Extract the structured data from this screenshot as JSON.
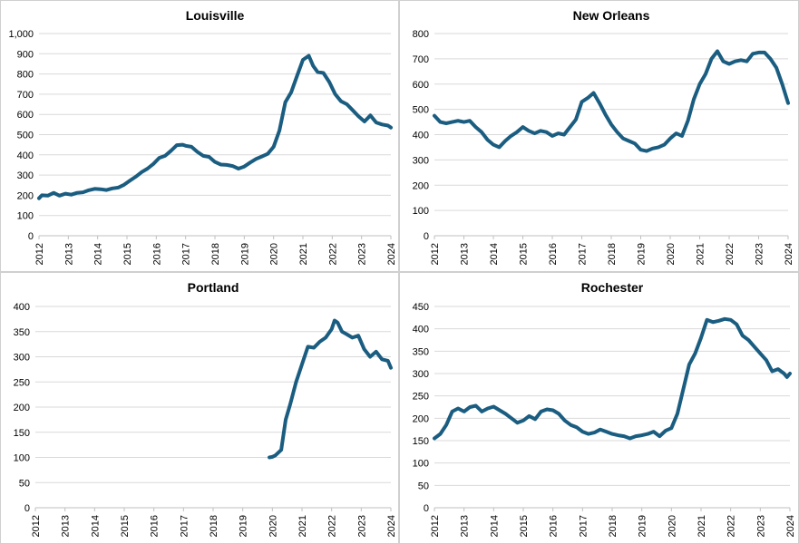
{
  "colors": {
    "series": "#1a5d80",
    "grid": "#d9d9d9"
  },
  "chart_data": [
    {
      "type": "line",
      "title": "Louisville",
      "xlabel": "",
      "ylabel": "",
      "xlim": [
        2012,
        2024
      ],
      "ylim": [
        0,
        1000
      ],
      "y_ticks": [
        0,
        100,
        200,
        300,
        400,
        500,
        600,
        700,
        800,
        900,
        1000
      ],
      "y_tick_labels": [
        "0",
        "100",
        "200",
        "300",
        "400",
        "500",
        "600",
        "700",
        "800",
        "900",
        "1,000"
      ],
      "x_ticks": [
        2012,
        2013,
        2014,
        2015,
        2016,
        2017,
        2018,
        2019,
        2020,
        2021,
        2022,
        2023,
        2024
      ],
      "x_tick_labels": [
        "2012",
        "2013",
        "2014",
        "2015",
        "2016",
        "2017",
        "2018",
        "2019",
        "2020",
        "2021",
        "2022",
        "2023",
        "2024"
      ],
      "grid": true,
      "series": [
        {
          "x": [
            2012.0,
            2012.1,
            2012.3,
            2012.5,
            2012.7,
            2012.9,
            2013.1,
            2013.3,
            2013.5,
            2013.7,
            2013.9,
            2014.1,
            2014.3,
            2014.5,
            2014.7,
            2014.9,
            2015.1,
            2015.3,
            2015.5,
            2015.7,
            2015.9,
            2016.1,
            2016.3,
            2016.5,
            2016.7,
            2016.9,
            2017.0,
            2017.2,
            2017.4,
            2017.6,
            2017.8,
            2018.0,
            2018.2,
            2018.4,
            2018.6,
            2018.8,
            2019.0,
            2019.2,
            2019.4,
            2019.6,
            2019.8,
            2020.0,
            2020.2,
            2020.4,
            2020.6,
            2020.8,
            2021.0,
            2021.2,
            2021.35,
            2021.5,
            2021.7,
            2021.9,
            2022.1,
            2022.3,
            2022.5,
            2022.7,
            2022.9,
            2023.1,
            2023.3,
            2023.5,
            2023.7,
            2023.9,
            2024.0
          ],
          "y": [
            185,
            200,
            198,
            212,
            198,
            208,
            203,
            212,
            215,
            225,
            232,
            230,
            226,
            234,
            238,
            252,
            272,
            292,
            315,
            332,
            355,
            385,
            395,
            420,
            448,
            450,
            445,
            440,
            415,
            395,
            390,
            365,
            352,
            350,
            345,
            332,
            342,
            362,
            380,
            392,
            405,
            440,
            520,
            660,
            710,
            790,
            870,
            890,
            840,
            810,
            805,
            760,
            700,
            665,
            650,
            620,
            590,
            565,
            595,
            560,
            550,
            545,
            535
          ]
        }
      ]
    },
    {
      "type": "line",
      "title": "New Orleans",
      "xlabel": "",
      "ylabel": "",
      "xlim": [
        2012,
        2024
      ],
      "ylim": [
        0,
        800
      ],
      "y_ticks": [
        0,
        100,
        200,
        300,
        400,
        500,
        600,
        700,
        800
      ],
      "y_tick_labels": [
        "0",
        "100",
        "200",
        "300",
        "400",
        "500",
        "600",
        "700",
        "800"
      ],
      "x_ticks": [
        2012,
        2013,
        2014,
        2015,
        2016,
        2017,
        2018,
        2019,
        2020,
        2021,
        2022,
        2023,
        2024
      ],
      "x_tick_labels": [
        "2012",
        "2013",
        "2014",
        "2015",
        "2016",
        "2017",
        "2018",
        "2019",
        "2020",
        "2021",
        "2022",
        "2023",
        "2024"
      ],
      "grid": true,
      "series": [
        {
          "x": [
            2012.0,
            2012.2,
            2012.4,
            2012.6,
            2012.8,
            2013.0,
            2013.2,
            2013.4,
            2013.6,
            2013.8,
            2014.0,
            2014.2,
            2014.4,
            2014.6,
            2014.8,
            2015.0,
            2015.2,
            2015.4,
            2015.6,
            2015.8,
            2016.0,
            2016.2,
            2016.4,
            2016.6,
            2016.8,
            2017.0,
            2017.2,
            2017.4,
            2017.6,
            2017.8,
            2018.0,
            2018.2,
            2018.4,
            2018.6,
            2018.8,
            2019.0,
            2019.2,
            2019.4,
            2019.6,
            2019.8,
            2020.0,
            2020.2,
            2020.4,
            2020.6,
            2020.8,
            2021.0,
            2021.2,
            2021.4,
            2021.6,
            2021.8,
            2022.0,
            2022.2,
            2022.4,
            2022.6,
            2022.8,
            2023.0,
            2023.2,
            2023.4,
            2023.6,
            2023.8,
            2024.0
          ],
          "y": [
            475,
            450,
            445,
            450,
            455,
            450,
            455,
            430,
            410,
            380,
            360,
            350,
            375,
            395,
            410,
            430,
            415,
            405,
            415,
            410,
            395,
            405,
            400,
            430,
            460,
            530,
            545,
            565,
            525,
            480,
            440,
            410,
            385,
            375,
            365,
            340,
            335,
            345,
            350,
            360,
            385,
            405,
            395,
            455,
            540,
            600,
            640,
            700,
            730,
            690,
            680,
            690,
            695,
            690,
            720,
            725,
            725,
            700,
            665,
            600,
            525
          ]
        }
      ]
    },
    {
      "type": "line",
      "title": "Portland",
      "xlabel": "",
      "ylabel": "",
      "xlim": [
        2012,
        2024
      ],
      "ylim": [
        0,
        400
      ],
      "y_ticks": [
        0,
        50,
        100,
        150,
        200,
        250,
        300,
        350,
        400
      ],
      "y_tick_labels": [
        "0",
        "50",
        "100",
        "150",
        "200",
        "250",
        "300",
        "350",
        "400"
      ],
      "x_ticks": [
        2012,
        2013,
        2014,
        2015,
        2016,
        2017,
        2018,
        2019,
        2020,
        2021,
        2022,
        2023,
        2024
      ],
      "x_tick_labels": [
        "2012",
        "2013",
        "2014",
        "2015",
        "2016",
        "2017",
        "2018",
        "2019",
        "2020",
        "2021",
        "2022",
        "2023",
        "2024"
      ],
      "grid": true,
      "series": [
        {
          "x": [
            2019.9,
            2020.0,
            2020.1,
            2020.3,
            2020.45,
            2020.6,
            2020.8,
            2021.0,
            2021.2,
            2021.4,
            2021.6,
            2021.8,
            2022.0,
            2022.1,
            2022.2,
            2022.35,
            2022.5,
            2022.7,
            2022.9,
            2023.1,
            2023.3,
            2023.5,
            2023.7,
            2023.9,
            2024.0
          ],
          "y": [
            100,
            101,
            104,
            115,
            175,
            205,
            250,
            285,
            320,
            318,
            330,
            338,
            355,
            372,
            368,
            350,
            345,
            338,
            342,
            315,
            300,
            310,
            295,
            292,
            278
          ]
        }
      ]
    },
    {
      "type": "line",
      "title": "Rochester",
      "xlabel": "",
      "ylabel": "",
      "xlim": [
        2012,
        2024
      ],
      "ylim": [
        0,
        450
      ],
      "y_ticks": [
        0,
        50,
        100,
        150,
        200,
        250,
        300,
        350,
        400,
        450
      ],
      "y_tick_labels": [
        "0",
        "50",
        "100",
        "150",
        "200",
        "250",
        "300",
        "350",
        "400",
        "450"
      ],
      "x_ticks": [
        2012,
        2013,
        2014,
        2015,
        2016,
        2017,
        2018,
        2019,
        2020,
        2021,
        2022,
        2023,
        2024
      ],
      "x_tick_labels": [
        "2012",
        "2013",
        "2014",
        "2015",
        "2016",
        "2017",
        "2018",
        "2019",
        "2020",
        "2021",
        "2022",
        "2023",
        "2024"
      ],
      "grid": true,
      "series": [
        {
          "x": [
            2012.0,
            2012.2,
            2012.4,
            2012.6,
            2012.8,
            2013.0,
            2013.2,
            2013.4,
            2013.6,
            2013.8,
            2014.0,
            2014.2,
            2014.4,
            2014.6,
            2014.8,
            2015.0,
            2015.2,
            2015.4,
            2015.6,
            2015.8,
            2016.0,
            2016.2,
            2016.4,
            2016.6,
            2016.8,
            2017.0,
            2017.2,
            2017.4,
            2017.6,
            2017.8,
            2018.0,
            2018.2,
            2018.4,
            2018.6,
            2018.8,
            2019.0,
            2019.2,
            2019.4,
            2019.6,
            2019.8,
            2020.0,
            2020.2,
            2020.4,
            2020.6,
            2020.8,
            2021.0,
            2021.2,
            2021.4,
            2021.6,
            2021.8,
            2022.0,
            2022.2,
            2022.4,
            2022.6,
            2022.8,
            2023.0,
            2023.2,
            2023.4,
            2023.6,
            2023.8,
            2023.9,
            2024.0
          ],
          "y": [
            155,
            165,
            185,
            215,
            222,
            215,
            225,
            228,
            215,
            222,
            226,
            218,
            210,
            200,
            190,
            195,
            205,
            198,
            215,
            220,
            218,
            210,
            195,
            185,
            180,
            170,
            165,
            168,
            175,
            170,
            165,
            162,
            160,
            155,
            160,
            162,
            165,
            170,
            160,
            172,
            178,
            210,
            265,
            320,
            345,
            380,
            420,
            415,
            418,
            422,
            420,
            410,
            385,
            375,
            360,
            345,
            330,
            305,
            310,
            300,
            292,
            300
          ]
        }
      ]
    }
  ]
}
